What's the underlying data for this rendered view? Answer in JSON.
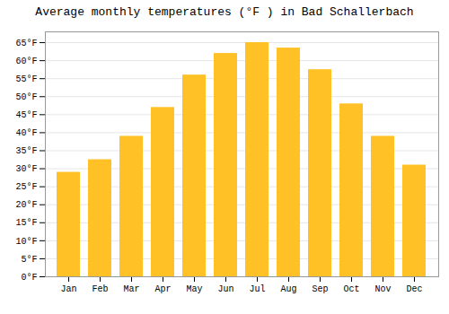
{
  "chart_data": {
    "type": "bar",
    "title": "Average monthly temperatures (°F ) in Bad Schallerbach",
    "categories": [
      "Jan",
      "Feb",
      "Mar",
      "Apr",
      "May",
      "Jun",
      "Jul",
      "Aug",
      "Sep",
      "Oct",
      "Nov",
      "Dec"
    ],
    "values": [
      29,
      32.5,
      39,
      47,
      56,
      62,
      65,
      63.5,
      57.5,
      48,
      39,
      31
    ],
    "color": "#FFC125",
    "ylim": [
      0,
      68
    ],
    "yticks": [
      {
        "value": 0,
        "label": "0°F"
      },
      {
        "value": 5,
        "label": "5°F"
      },
      {
        "value": 10,
        "label": "10°F"
      },
      {
        "value": 15,
        "label": "15°F"
      },
      {
        "value": 20,
        "label": "20°F"
      },
      {
        "value": 25,
        "label": "25°F"
      },
      {
        "value": 30,
        "label": "30°F"
      },
      {
        "value": 35,
        "label": "35°F"
      },
      {
        "value": 40,
        "label": "40°F"
      },
      {
        "value": 45,
        "label": "45°F"
      },
      {
        "value": 50,
        "label": "50°F"
      },
      {
        "value": 55,
        "label": "55°F"
      },
      {
        "value": 60,
        "label": "60°F"
      },
      {
        "value": 65,
        "label": "65°F"
      }
    ],
    "grid": true
  }
}
